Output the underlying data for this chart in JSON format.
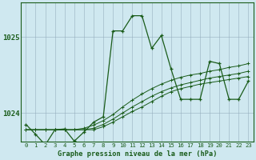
{
  "title": "Graphe pression niveau de la mer (hPa)",
  "background_color": "#cfe8f0",
  "line_color": "#1a5c1a",
  "xlim": [
    -0.5,
    23.5
  ],
  "ylim": [
    1023.62,
    1025.45
  ],
  "yticks": [
    1024,
    1025
  ],
  "ytick_labels": [
    "1024",
    "1025"
  ],
  "xticks": [
    0,
    1,
    2,
    3,
    4,
    5,
    6,
    7,
    8,
    9,
    10,
    11,
    12,
    13,
    14,
    15,
    16,
    17,
    18,
    19,
    20,
    21,
    22,
    23
  ],
  "figsize": [
    3.2,
    2.0
  ],
  "dpi": 100,
  "series_main": [
    1023.85,
    1023.72,
    1023.58,
    1023.78,
    1023.79,
    1023.63,
    1023.75,
    1023.88,
    1023.95,
    1025.08,
    1025.08,
    1025.28,
    1025.28,
    1024.85,
    1025.02,
    1024.58,
    1024.18,
    1024.18,
    1024.18,
    1024.68,
    1024.65,
    1024.18,
    1024.18,
    1024.42
  ],
  "series_trend1": [
    1023.78,
    1023.78,
    1023.78,
    1023.78,
    1023.78,
    1023.78,
    1023.78,
    1023.78,
    1023.82,
    1023.88,
    1023.95,
    1024.02,
    1024.08,
    1024.15,
    1024.22,
    1024.28,
    1024.32,
    1024.35,
    1024.38,
    1024.4,
    1024.42,
    1024.44,
    1024.46,
    1024.48
  ],
  "series_trend2": [
    1023.78,
    1023.78,
    1023.78,
    1023.78,
    1023.78,
    1023.78,
    1023.78,
    1023.8,
    1023.85,
    1023.92,
    1024.0,
    1024.08,
    1024.15,
    1024.22,
    1024.28,
    1024.33,
    1024.37,
    1024.4,
    1024.43,
    1024.46,
    1024.48,
    1024.5,
    1024.52,
    1024.55
  ],
  "series_trend3": [
    1023.78,
    1023.78,
    1023.78,
    1023.78,
    1023.78,
    1023.78,
    1023.8,
    1023.84,
    1023.9,
    1023.98,
    1024.08,
    1024.17,
    1024.25,
    1024.32,
    1024.38,
    1024.43,
    1024.47,
    1024.5,
    1024.52,
    1024.55,
    1024.57,
    1024.6,
    1024.62,
    1024.65
  ]
}
